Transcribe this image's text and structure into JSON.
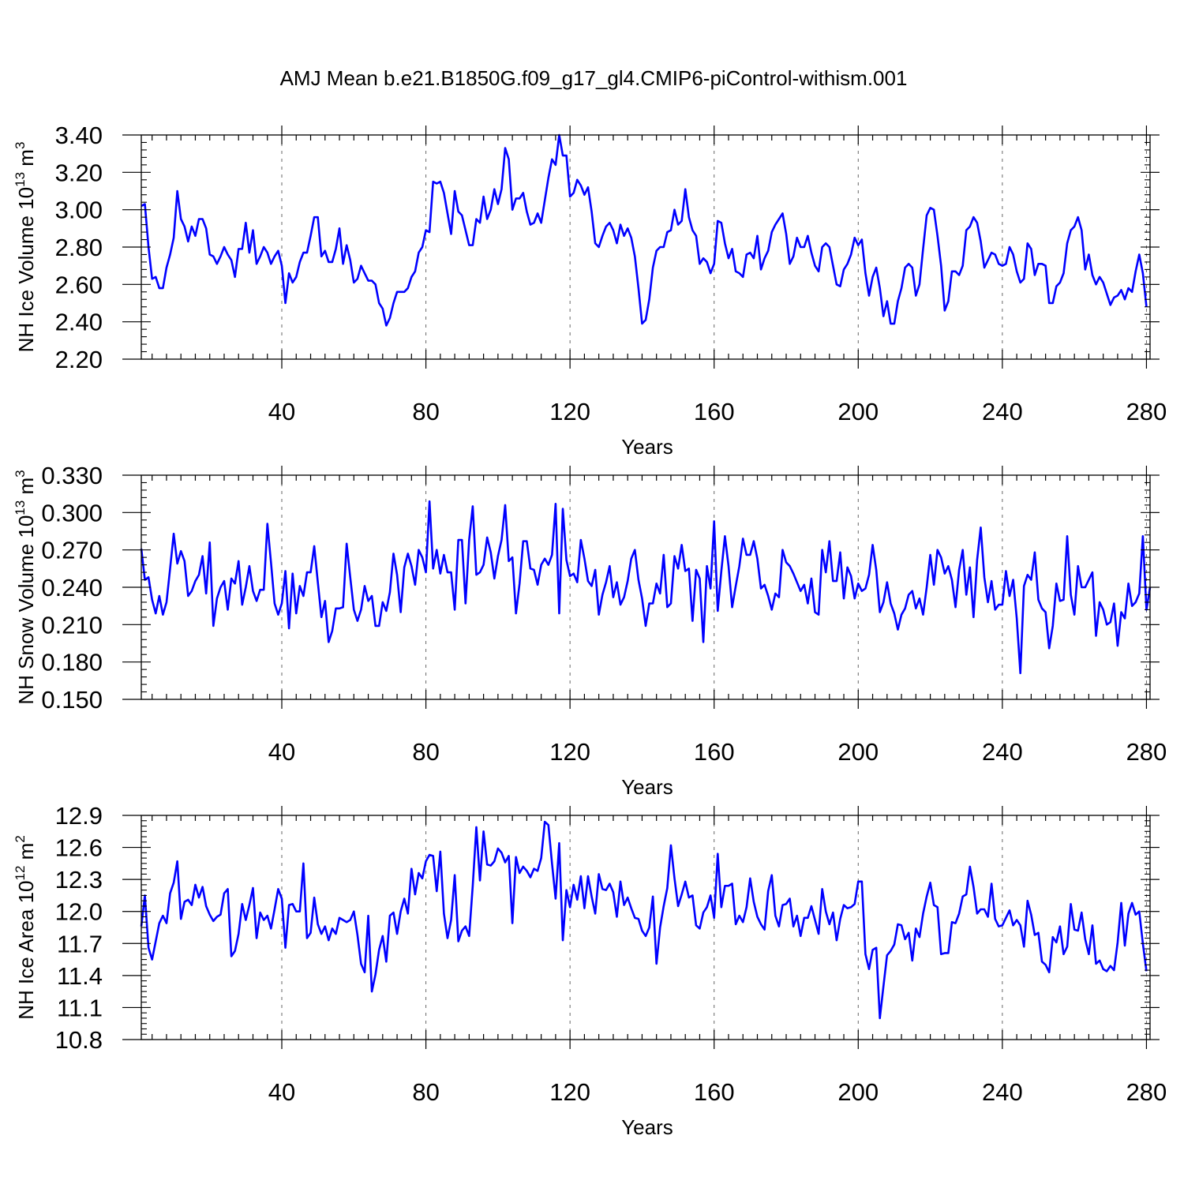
{
  "title": "AMJ Mean b.e21.B1850G.f09_g17_gl4.CMIP6-piControl-withism.001",
  "line_color": "#0000ff",
  "chart_data": [
    {
      "type": "line",
      "ylabel": {
        "base": "NH Ice Volume 10",
        "exp1": "13",
        "mid": " m",
        "exp2": "3"
      },
      "xlabel": "Years",
      "xlim": [
        1,
        281
      ],
      "xticks": [
        40,
        80,
        120,
        160,
        200,
        240,
        280
      ],
      "ylim": [
        2.2,
        3.4
      ],
      "yticks": [
        "2.20",
        "2.40",
        "2.60",
        "2.80",
        "3.00",
        "3.20",
        "3.40"
      ],
      "grid": "dashed vertical at major x ticks",
      "series": [
        {
          "x_start": 1,
          "values": [
            3.02,
            3.03,
            2.8,
            2.63,
            2.64,
            2.58,
            2.58,
            2.69,
            2.76,
            2.85,
            3.1,
            2.95,
            2.91,
            2.83,
            2.91,
            2.86,
            2.95,
            2.95,
            2.9,
            2.76,
            2.75,
            2.71,
            2.75,
            2.8,
            2.76,
            2.73,
            2.64,
            2.79,
            2.79,
            2.93,
            2.77,
            2.89,
            2.71,
            2.75,
            2.8,
            2.77,
            2.71,
            2.75,
            2.78,
            2.7,
            2.5,
            2.66,
            2.61,
            2.64,
            2.72,
            2.77,
            2.77,
            2.86,
            2.96,
            2.96,
            2.75,
            2.78,
            2.72,
            2.72,
            2.79,
            2.9,
            2.71,
            2.81,
            2.73,
            2.61,
            2.63,
            2.7,
            2.66,
            2.62,
            2.62,
            2.6,
            2.5,
            2.47,
            2.38,
            2.42,
            2.5,
            2.56,
            2.56,
            2.56,
            2.58,
            2.64,
            2.67,
            2.77,
            2.8,
            2.89,
            2.88,
            3.15,
            3.14,
            3.15,
            3.09,
            2.98,
            2.87,
            3.1,
            2.99,
            2.97,
            2.89,
            2.81,
            2.81,
            2.95,
            2.93,
            3.07,
            2.95,
            3.0,
            3.11,
            3.03,
            3.11,
            3.33,
            3.27,
            3.0,
            3.06,
            3.06,
            3.09,
            2.99,
            2.92,
            2.93,
            2.98,
            2.93,
            3.05,
            3.17,
            3.27,
            3.24,
            3.4,
            3.29,
            3.29,
            3.07,
            3.09,
            3.16,
            3.13,
            3.08,
            3.12,
            2.99,
            2.82,
            2.8,
            2.86,
            2.91,
            2.93,
            2.89,
            2.82,
            2.92,
            2.86,
            2.9,
            2.85,
            2.75,
            2.58,
            2.39,
            2.41,
            2.52,
            2.69,
            2.78,
            2.8,
            2.8,
            2.88,
            2.89,
            3.0,
            2.92,
            2.94,
            3.11,
            2.96,
            2.89,
            2.86,
            2.71,
            2.74,
            2.72,
            2.66,
            2.71,
            2.94,
            2.93,
            2.82,
            2.74,
            2.79,
            2.67,
            2.66,
            2.64,
            2.76,
            2.77,
            2.74,
            2.86,
            2.68,
            2.74,
            2.78,
            2.88,
            2.92,
            2.95,
            2.98,
            2.87,
            2.71,
            2.75,
            2.85,
            2.8,
            2.8,
            2.86,
            2.77,
            2.7,
            2.67,
            2.8,
            2.82,
            2.8,
            2.7,
            2.6,
            2.59,
            2.68,
            2.71,
            2.76,
            2.85,
            2.81,
            2.84,
            2.66,
            2.54,
            2.64,
            2.69,
            2.58,
            2.43,
            2.51,
            2.39,
            2.39,
            2.51,
            2.58,
            2.69,
            2.71,
            2.69,
            2.54,
            2.6,
            2.79,
            2.97,
            3.01,
            3.0,
            2.86,
            2.7,
            2.46,
            2.51,
            2.67,
            2.67,
            2.65,
            2.7,
            2.89,
            2.91,
            2.96,
            2.93,
            2.83,
            2.69,
            2.73,
            2.77,
            2.76,
            2.71,
            2.7,
            2.71,
            2.8,
            2.76,
            2.67,
            2.61,
            2.63,
            2.82,
            2.79,
            2.65,
            2.71,
            2.71,
            2.7,
            2.5,
            2.5,
            2.59,
            2.61,
            2.66,
            2.82,
            2.89,
            2.91,
            2.96,
            2.89,
            2.68,
            2.76,
            2.65,
            2.6,
            2.64,
            2.61,
            2.55,
            2.49,
            2.53,
            2.54,
            2.57,
            2.52,
            2.58,
            2.56,
            2.67,
            2.76,
            2.66,
            2.48
          ]
        }
      ]
    },
    {
      "type": "line",
      "ylabel": {
        "base": "NH Snow Volume 10",
        "exp1": "13",
        "mid": " m",
        "exp2": "3"
      },
      "xlabel": "Years",
      "xlim": [
        1,
        281
      ],
      "xticks": [
        40,
        80,
        120,
        160,
        200,
        240,
        280
      ],
      "ylim": [
        0.15,
        0.33
      ],
      "yticks": [
        "0.150",
        "0.180",
        "0.210",
        "0.240",
        "0.270",
        "0.300",
        "0.330"
      ],
      "grid": "dashed vertical at major x ticks",
      "series": [
        {
          "x_start": 1,
          "values": [
            0.271,
            0.246,
            0.248,
            0.23,
            0.219,
            0.233,
            0.218,
            0.228,
            0.255,
            0.283,
            0.259,
            0.269,
            0.261,
            0.233,
            0.237,
            0.245,
            0.25,
            0.265,
            0.235,
            0.276,
            0.209,
            0.231,
            0.24,
            0.245,
            0.222,
            0.247,
            0.243,
            0.261,
            0.226,
            0.24,
            0.257,
            0.237,
            0.229,
            0.238,
            0.238,
            0.291,
            0.26,
            0.227,
            0.218,
            0.227,
            0.253,
            0.207,
            0.251,
            0.219,
            0.241,
            0.233,
            0.252,
            0.252,
            0.273,
            0.244,
            0.216,
            0.229,
            0.196,
            0.205,
            0.223,
            0.223,
            0.224,
            0.275,
            0.248,
            0.222,
            0.213,
            0.222,
            0.241,
            0.229,
            0.233,
            0.209,
            0.209,
            0.228,
            0.221,
            0.236,
            0.267,
            0.25,
            0.22,
            0.256,
            0.267,
            0.257,
            0.242,
            0.27,
            0.264,
            0.252,
            0.309,
            0.255,
            0.27,
            0.251,
            0.266,
            0.252,
            0.252,
            0.222,
            0.278,
            0.278,
            0.227,
            0.278,
            0.305,
            0.25,
            0.252,
            0.258,
            0.28,
            0.268,
            0.247,
            0.265,
            0.278,
            0.306,
            0.261,
            0.264,
            0.219,
            0.243,
            0.277,
            0.277,
            0.255,
            0.254,
            0.242,
            0.258,
            0.263,
            0.258,
            0.266,
            0.307,
            0.219,
            0.303,
            0.262,
            0.249,
            0.251,
            0.244,
            0.278,
            0.263,
            0.245,
            0.241,
            0.254,
            0.218,
            0.234,
            0.244,
            0.257,
            0.232,
            0.244,
            0.226,
            0.232,
            0.245,
            0.263,
            0.27,
            0.246,
            0.231,
            0.209,
            0.227,
            0.227,
            0.243,
            0.235,
            0.266,
            0.224,
            0.227,
            0.265,
            0.255,
            0.274,
            0.253,
            0.255,
            0.213,
            0.254,
            0.247,
            0.196,
            0.257,
            0.239,
            0.293,
            0.221,
            0.253,
            0.281,
            0.257,
            0.224,
            0.241,
            0.257,
            0.279,
            0.266,
            0.266,
            0.277,
            0.263,
            0.239,
            0.242,
            0.233,
            0.222,
            0.235,
            0.232,
            0.27,
            0.26,
            0.257,
            0.251,
            0.244,
            0.237,
            0.242,
            0.227,
            0.247,
            0.22,
            0.218,
            0.27,
            0.252,
            0.277,
            0.245,
            0.245,
            0.268,
            0.231,
            0.256,
            0.249,
            0.231,
            0.243,
            0.237,
            0.239,
            0.25,
            0.274,
            0.254,
            0.22,
            0.228,
            0.244,
            0.227,
            0.219,
            0.206,
            0.218,
            0.223,
            0.234,
            0.237,
            0.223,
            0.231,
            0.218,
            0.24,
            0.266,
            0.242,
            0.27,
            0.264,
            0.251,
            0.257,
            0.246,
            0.224,
            0.254,
            0.27,
            0.234,
            0.256,
            0.216,
            0.262,
            0.288,
            0.248,
            0.228,
            0.245,
            0.222,
            0.226,
            0.226,
            0.253,
            0.233,
            0.246,
            0.215,
            0.171,
            0.241,
            0.25,
            0.246,
            0.268,
            0.23,
            0.223,
            0.22,
            0.191,
            0.209,
            0.243,
            0.229,
            0.23,
            0.281,
            0.234,
            0.218,
            0.257,
            0.24,
            0.24,
            0.246,
            0.252,
            0.201,
            0.228,
            0.222,
            0.21,
            0.212,
            0.227,
            0.193,
            0.22,
            0.215,
            0.243,
            0.225,
            0.228,
            0.235,
            0.281,
            0.222,
            0.24
          ]
        }
      ]
    },
    {
      "type": "line",
      "ylabel": {
        "base": "NH Ice Area 10",
        "exp1": "12",
        "mid": " m",
        "exp2": "2"
      },
      "xlabel": "Years",
      "xlim": [
        1,
        281
      ],
      "xticks": [
        40,
        80,
        120,
        160,
        200,
        240,
        280
      ],
      "ylim": [
        10.8,
        12.9
      ],
      "yticks": [
        "10.8",
        "11.1",
        "11.4",
        "11.7",
        "12.0",
        "12.3",
        "12.6",
        "12.9"
      ],
      "grid": "dashed vertical at major x ticks",
      "series": [
        {
          "x_start": 1,
          "values": [
            11.86,
            12.15,
            11.66,
            11.55,
            11.72,
            11.89,
            11.96,
            11.89,
            12.17,
            12.27,
            12.47,
            11.93,
            12.09,
            12.11,
            12.06,
            12.25,
            12.13,
            12.23,
            12.05,
            11.97,
            11.91,
            11.95,
            11.97,
            12.17,
            12.21,
            11.58,
            11.63,
            11.79,
            12.07,
            11.92,
            12.06,
            12.22,
            11.75,
            11.99,
            11.92,
            11.96,
            11.84,
            12.02,
            12.21,
            12.12,
            11.66,
            12.06,
            12.07,
            12.0,
            12.0,
            12.45,
            11.75,
            11.8,
            12.13,
            11.88,
            11.79,
            11.86,
            11.73,
            11.84,
            11.79,
            11.94,
            11.92,
            11.9,
            11.92,
            12.0,
            11.78,
            11.51,
            11.43,
            11.96,
            11.25,
            11.41,
            11.64,
            11.77,
            11.53,
            11.96,
            11.99,
            11.79,
            12.0,
            12.12,
            11.98,
            12.4,
            12.16,
            12.36,
            12.31,
            12.47,
            12.53,
            12.52,
            12.19,
            12.56,
            11.98,
            11.75,
            11.92,
            12.34,
            11.72,
            11.82,
            11.86,
            11.77,
            12.24,
            12.79,
            12.29,
            12.75,
            12.44,
            12.43,
            12.47,
            12.59,
            12.55,
            12.46,
            12.52,
            11.89,
            12.51,
            12.36,
            12.42,
            12.38,
            12.32,
            12.4,
            12.38,
            12.5,
            12.84,
            12.81,
            12.45,
            12.12,
            12.64,
            11.73,
            12.2,
            12.04,
            12.25,
            12.11,
            12.33,
            12.03,
            12.33,
            12.14,
            11.98,
            12.35,
            12.21,
            12.2,
            12.26,
            12.18,
            11.95,
            12.28,
            12.06,
            12.13,
            12.03,
            11.94,
            11.93,
            11.82,
            11.77,
            11.85,
            12.14,
            11.51,
            11.85,
            12.05,
            12.22,
            12.62,
            12.31,
            12.05,
            12.16,
            12.28,
            12.13,
            12.15,
            11.87,
            11.84,
            11.99,
            12.04,
            12.15,
            11.94,
            12.54,
            12.04,
            12.24,
            12.24,
            12.26,
            11.88,
            11.96,
            11.9,
            12.04,
            12.31,
            12.09,
            11.95,
            11.88,
            11.83,
            12.19,
            12.34,
            11.96,
            11.86,
            12.06,
            12.07,
            12.12,
            11.86,
            11.96,
            11.77,
            11.94,
            11.94,
            12.05,
            11.92,
            11.79,
            12.21,
            12.0,
            11.88,
            11.99,
            11.73,
            11.93,
            12.06,
            12.03,
            12.04,
            12.07,
            12.28,
            12.28,
            11.6,
            11.46,
            11.64,
            11.66,
            11.0,
            11.3,
            11.59,
            11.63,
            11.69,
            11.88,
            11.87,
            11.74,
            11.8,
            11.54,
            11.84,
            11.76,
            11.98,
            12.14,
            12.27,
            12.06,
            12.04,
            11.6,
            11.61,
            11.61,
            11.9,
            11.89,
            11.98,
            12.14,
            12.16,
            12.42,
            12.23,
            11.98,
            12.02,
            12.02,
            11.95,
            12.26,
            11.93,
            11.86,
            11.87,
            11.94,
            12.01,
            11.87,
            11.92,
            11.87,
            11.67,
            12.1,
            11.97,
            11.78,
            11.8,
            11.53,
            11.5,
            11.43,
            11.76,
            11.71,
            11.86,
            11.6,
            11.67,
            12.07,
            11.83,
            11.82,
            11.99,
            11.74,
            11.6,
            11.87,
            11.51,
            11.54,
            11.46,
            11.44,
            11.49,
            11.45,
            11.71,
            12.08,
            11.68,
            11.98,
            12.08,
            11.97,
            12.0,
            11.7,
            11.44
          ]
        }
      ]
    }
  ]
}
